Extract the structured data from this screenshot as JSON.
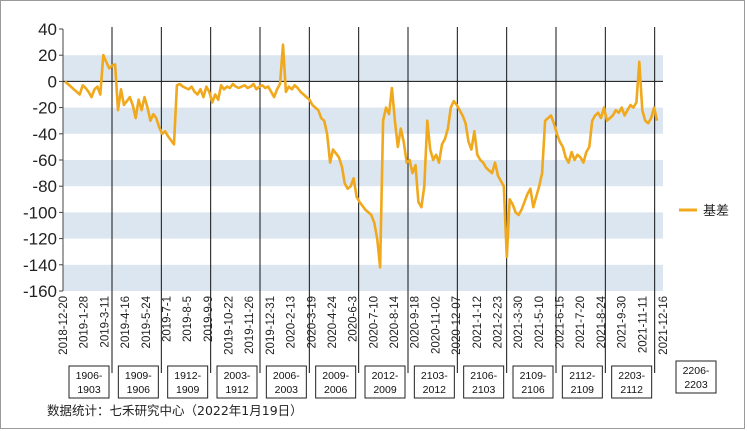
{
  "chart_data": {
    "type": "line",
    "yticks": [
      40,
      20,
      0,
      -20,
      -40,
      -60,
      -80,
      -100,
      -120,
      -140,
      -160
    ],
    "ylim": [
      -160,
      40
    ],
    "xticks": [
      "2018-12-20",
      "2019-1-28",
      "2019-3-11",
      "2019-4-16",
      "2019-5-24",
      "2019-7-1",
      "2019-8-5",
      "2019-9-9",
      "2019-10-22",
      "2019-11-26",
      "2019-12-31",
      "2020-2-13",
      "2020-3-19",
      "2020-4-24",
      "2020-6-3",
      "2020-7-10",
      "2020-8-14",
      "2020-9-18",
      "2020-11-02",
      "2020-12-07",
      "2021-1-12",
      "2021-2-23",
      "2021-3-30",
      "2021-5-10",
      "2021-6-15",
      "2021-7-20",
      "2021-8-24",
      "2021-9-30",
      "2021-11-11",
      "2021-12-16"
    ],
    "legend_position": "right",
    "series": [
      {
        "name": "基差",
        "color": "#F0A81C",
        "values": [
          0,
          -2,
          -4,
          -6,
          -8,
          -10,
          -3,
          -5,
          -8,
          -12,
          -6,
          -4,
          -10,
          20,
          15,
          10,
          12,
          13,
          -22,
          -6,
          -18,
          -15,
          -12,
          -18,
          -28,
          -14,
          -22,
          -12,
          -20,
          -30,
          -25,
          -28,
          -35,
          -40,
          -38,
          -42,
          -45,
          -48,
          -3,
          -2,
          -4,
          -5,
          -6,
          -4,
          -8,
          -10,
          -6,
          -12,
          -4,
          -8,
          -16,
          -10,
          -14,
          -3,
          -6,
          -4,
          -5,
          -2,
          -4,
          -5,
          -4,
          -3,
          -5,
          -4,
          -2,
          -6,
          -4,
          -3,
          -5,
          -4,
          -8,
          -12,
          -6,
          -2,
          28,
          -8,
          -4,
          -6,
          -3,
          -5,
          -8,
          -10,
          -12,
          -14,
          -18,
          -20,
          -22,
          -28,
          -30,
          -40,
          -62,
          -52,
          -55,
          -58,
          -65,
          -78,
          -82,
          -80,
          -74,
          -88,
          -92,
          -95,
          -98,
          -100,
          -102,
          -108,
          -120,
          -142,
          -30,
          -20,
          -25,
          -5,
          -30,
          -50,
          -36,
          -46,
          -62,
          -60,
          -70,
          -64,
          -92,
          -96,
          -80,
          -30,
          -52,
          -60,
          -56,
          -62,
          -48,
          -44,
          -36,
          -20,
          -15,
          -18,
          -22,
          -26,
          -32,
          -46,
          -52,
          -38,
          -56,
          -60,
          -62,
          -66,
          -68,
          -70,
          -62,
          -72,
          -76,
          -80,
          -134,
          -90,
          -94,
          -100,
          -102,
          -98,
          -92,
          -86,
          -82,
          -96,
          -88,
          -80,
          -70,
          -30,
          -28,
          -26,
          -32,
          -40,
          -46,
          -50,
          -58,
          -62,
          -54,
          -60,
          -56,
          -58,
          -62,
          -54,
          -50,
          -30,
          -26,
          -24,
          -28,
          -20,
          -30,
          -28,
          -26,
          -22,
          -24,
          -20,
          -26,
          -22,
          -18,
          -20,
          -16,
          15,
          -22,
          -30,
          -32,
          -28,
          -20,
          -30
        ]
      }
    ],
    "contracts": [
      {
        "l1": "1906-",
        "l2": "1903"
      },
      {
        "l1": "1909-",
        "l2": "1906"
      },
      {
        "l1": "1912-",
        "l2": "1909"
      },
      {
        "l1": "2003-",
        "l2": "1912"
      },
      {
        "l1": "2006-",
        "l2": "2003"
      },
      {
        "l1": "2009-",
        "l2": "2006"
      },
      {
        "l1": "2012-",
        "l2": "2009"
      },
      {
        "l1": "2103-",
        "l2": "2012"
      },
      {
        "l1": "2106-",
        "l2": "2103"
      },
      {
        "l1": "2109-",
        "l2": "2106"
      },
      {
        "l1": "2112-",
        "l2": "2109"
      },
      {
        "l1": "2203-",
        "l2": "2112"
      },
      {
        "l1": "2206-",
        "l2": "2203"
      }
    ]
  },
  "source_note": "数据统计：七禾研究中心（2022年1月19日）",
  "colors": {
    "band": "#DCE6F1",
    "line": "#F0A81C"
  }
}
